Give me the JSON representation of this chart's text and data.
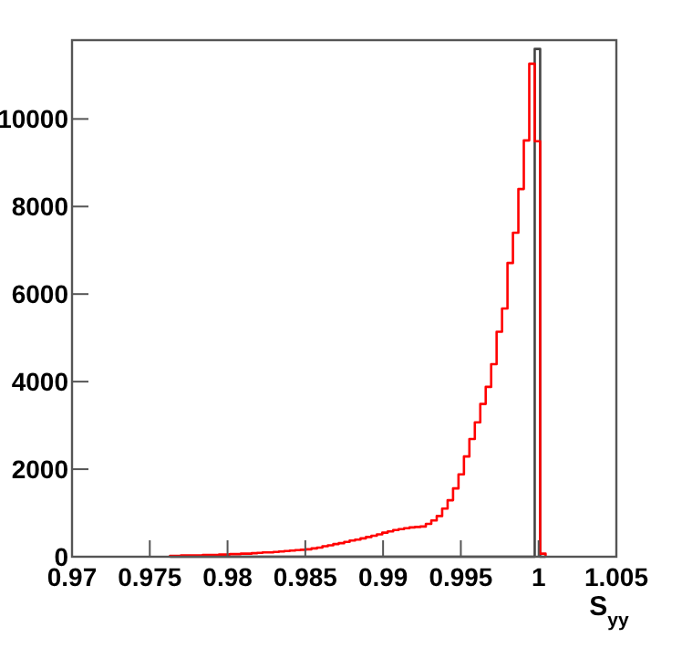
{
  "chart_data": {
    "type": "histogram",
    "xlabel": "S$_{yy}$",
    "xlim": [
      0.97,
      1.005
    ],
    "ylim": [
      0,
      11800
    ],
    "xticks": [
      0.97,
      0.975,
      0.98,
      0.985,
      0.99,
      0.995,
      {
        "value": 1,
        "label": "1"
      },
      1.005
    ],
    "yticks": [
      0,
      2000,
      4000,
      6000,
      8000,
      10000
    ],
    "bins": [
      0.9763,
      0.97665,
      0.977,
      0.97735,
      0.9777,
      0.97805,
      0.9784,
      0.97875,
      0.9791,
      0.97945,
      0.9798,
      0.98015,
      0.9805,
      0.98085,
      0.9812,
      0.98155,
      0.9819,
      0.98225,
      0.9826,
      0.98295,
      0.9833,
      0.98365,
      0.984,
      0.98435,
      0.9847,
      0.98505,
      0.9854,
      0.98575,
      0.9861,
      0.98645,
      0.9868,
      0.98715,
      0.9875,
      0.98785,
      0.9882,
      0.98855,
      0.9889,
      0.98925,
      0.9896,
      0.98995,
      0.9903,
      0.99065,
      0.991,
      0.99135,
      0.9917,
      0.99205,
      0.9924,
      0.99275,
      0.9931,
      0.99345,
      0.9938,
      0.99415,
      0.9945,
      0.99485,
      0.9952,
      0.99555,
      0.9959,
      0.99625,
      0.9966,
      0.99695,
      0.9973,
      0.99765,
      0.998,
      0.99835,
      0.9987,
      0.99905,
      0.9994,
      0.99975,
      1.0001,
      1.00045
    ],
    "series": [
      {
        "color": "#ff0000",
        "values": [
          20,
          20,
          30,
          30,
          30,
          30,
          40,
          40,
          40,
          50,
          50,
          60,
          60,
          70,
          70,
          80,
          90,
          100,
          100,
          110,
          120,
          130,
          140,
          150,
          160,
          170,
          190,
          210,
          240,
          260,
          290,
          310,
          340,
          370,
          390,
          420,
          450,
          480,
          510,
          550,
          580,
          610,
          630,
          650,
          670,
          680,
          690,
          750,
          830,
          930,
          1100,
          1290,
          1560,
          1880,
          2290,
          2690,
          3070,
          3490,
          3880,
          4400,
          5140,
          5670,
          6710,
          7400,
          8400,
          9510,
          11260,
          9490,
          70
        ]
      },
      {
        "color": "#444444",
        "values": [
          0,
          0,
          0,
          0,
          0,
          0,
          0,
          0,
          0,
          0,
          0,
          0,
          0,
          0,
          0,
          0,
          0,
          0,
          0,
          0,
          0,
          0,
          0,
          0,
          0,
          0,
          0,
          0,
          0,
          0,
          0,
          0,
          0,
          0,
          0,
          0,
          0,
          0,
          0,
          0,
          0,
          0,
          0,
          0,
          0,
          0,
          0,
          0,
          0,
          0,
          0,
          0,
          0,
          0,
          0,
          0,
          0,
          0,
          0,
          0,
          0,
          0,
          0,
          0,
          0,
          0,
          0,
          11600,
          0
        ]
      }
    ]
  }
}
